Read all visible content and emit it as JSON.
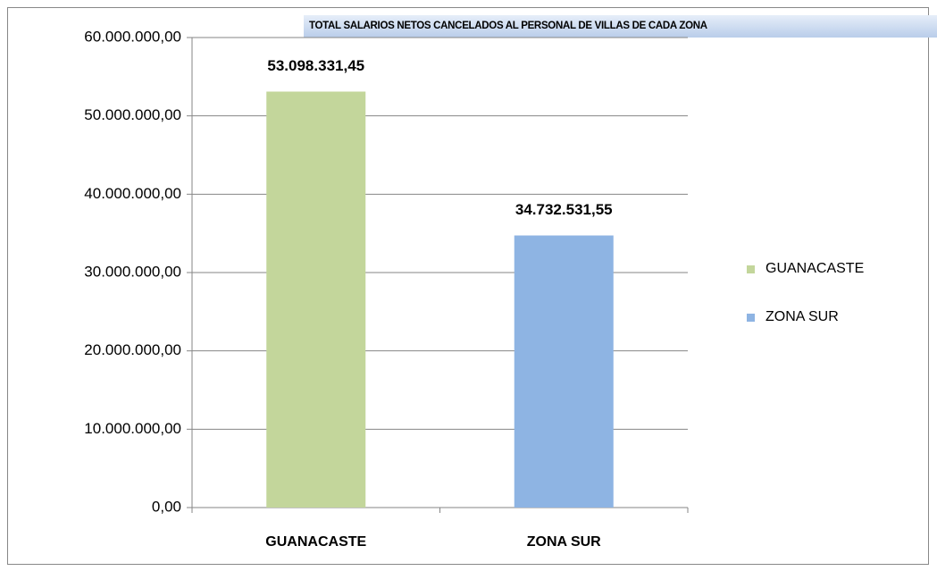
{
  "chart_data": {
    "type": "bar",
    "title": "TOTAL  SALARIOS NETOS CANCELADOS AL PERSONAL DE VILLAS DE CADA ZONA",
    "categories": [
      "GUANACASTE",
      "ZONA SUR"
    ],
    "series": [
      {
        "name": "GUANACASTE",
        "color": "#c3d69b",
        "values": [
          53098331.45,
          null
        ],
        "value_labels": [
          "53.098.331,45",
          null
        ]
      },
      {
        "name": "ZONA SUR",
        "color": "#8eb4e3",
        "values": [
          null,
          34732531.55
        ],
        "value_labels": [
          null,
          "34.732.531,55"
        ]
      }
    ],
    "ylim": [
      0,
      60000000
    ],
    "yticks": [
      {
        "value": 0,
        "label": "0,00"
      },
      {
        "value": 10000000,
        "label": "10.000.000,00"
      },
      {
        "value": 20000000,
        "label": "20.000.000,00"
      },
      {
        "value": 30000000,
        "label": "30.000.000,00"
      },
      {
        "value": 40000000,
        "label": "40.000.000,00"
      },
      {
        "value": 50000000,
        "label": "50.000.000,00"
      },
      {
        "value": 60000000,
        "label": "60.000.000,00"
      }
    ],
    "grid": true,
    "legend": "right"
  }
}
